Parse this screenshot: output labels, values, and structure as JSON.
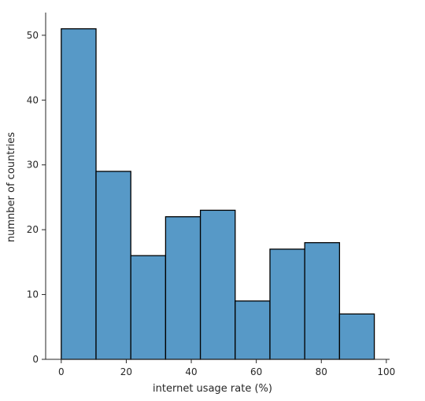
{
  "chart_data": {
    "type": "bar",
    "subtype": "histogram",
    "bins": [
      {
        "x_start": 0.0,
        "x_end": 10.7,
        "count": 51
      },
      {
        "x_start": 10.7,
        "x_end": 21.4,
        "count": 29
      },
      {
        "x_start": 21.4,
        "x_end": 32.1,
        "count": 16
      },
      {
        "x_start": 32.1,
        "x_end": 42.8,
        "count": 22
      },
      {
        "x_start": 42.8,
        "x_end": 53.5,
        "count": 23
      },
      {
        "x_start": 53.5,
        "x_end": 64.2,
        "count": 9
      },
      {
        "x_start": 64.2,
        "x_end": 74.9,
        "count": 17
      },
      {
        "x_start": 74.9,
        "x_end": 85.6,
        "count": 18
      },
      {
        "x_start": 85.6,
        "x_end": 96.3,
        "count": 7
      }
    ],
    "xlabel": "internet usage rate (%)",
    "ylabel": "numnber of countries",
    "xlim": [
      -4.8,
      101
    ],
    "ylim": [
      0,
      53.5
    ],
    "xticks": [
      0,
      20,
      40,
      60,
      80,
      100
    ],
    "yticks": [
      0,
      10,
      20,
      30,
      40,
      50
    ],
    "bar_color": "#5799c7",
    "edge_color": "#000000",
    "grid": false
  }
}
